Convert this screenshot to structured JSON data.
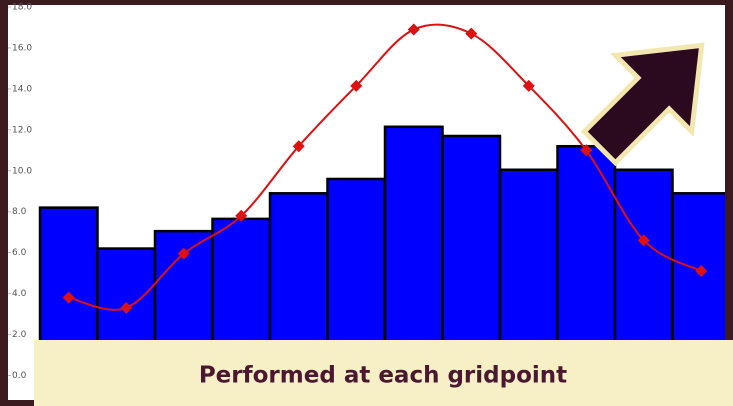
{
  "chart_data": {
    "type": "bar",
    "annotation": "Performed at each gridpoint",
    "ylim": [
      -1.2,
      18.1
    ],
    "yticks": [
      {
        "value": 0,
        "label": "0.0"
      },
      {
        "value": 2,
        "label": "2.0"
      },
      {
        "value": 4,
        "label": "4.0"
      },
      {
        "value": 6,
        "label": "6.0"
      },
      {
        "value": 8,
        "label": "8.0"
      },
      {
        "value": 10,
        "label": "10.0"
      },
      {
        "value": 12,
        "label": "12.0"
      },
      {
        "value": 14,
        "label": "14.0"
      },
      {
        "value": 16,
        "label": "16.0"
      },
      {
        "value": 18,
        "label": "18.0"
      }
    ],
    "grid": false,
    "series": [
      {
        "type": "bar",
        "color": "#0000ff",
        "values": [
          8.2,
          6.2,
          7.05,
          7.65,
          8.9,
          9.6,
          12.15,
          11.7,
          10.05,
          11.2,
          10.05,
          8.9
        ]
      },
      {
        "type": "line",
        "color": "#dd1111",
        "values": [
          3.8,
          3.3,
          5.95,
          7.8,
          11.2,
          14.15,
          16.9,
          16.7,
          14.15,
          11.0,
          6.6,
          5.1
        ]
      }
    ]
  }
}
